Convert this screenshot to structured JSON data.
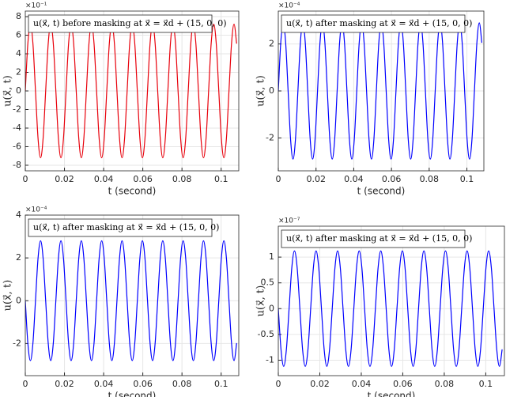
{
  "chart_data": [
    {
      "type": "line",
      "title": "u(x⃗, t) before masking at x⃗ = x⃗d + (15, 0, 0)",
      "xlabel": "t (second)",
      "ylabel": "u(x⃗, t)",
      "exponent": "×10⁻¹",
      "color": "#e8000b",
      "grid": true,
      "xlim": [
        0,
        0.109
      ],
      "xticks": [
        0,
        0.02,
        0.04,
        0.06,
        0.08,
        0.1
      ],
      "ylim": [
        -8.6,
        8.6
      ],
      "yticks": [
        -8,
        -6,
        -4,
        -2,
        0,
        2,
        4,
        6,
        8
      ],
      "x": [
        0,
        0.0013,
        0.0026,
        0.0039,
        0.0052,
        0.0065,
        0.0078,
        0.0091,
        0.0104,
        0.0117,
        0.013,
        0.0143,
        0.0156,
        0.0169,
        0.0182,
        0.0195,
        0.0208,
        0.0221,
        0.0234,
        0.0247,
        0.026,
        0.0273,
        0.0286,
        0.0299,
        0.0312,
        0.0325,
        0.0338,
        0.0351,
        0.0364,
        0.0377,
        0.039,
        0.0403,
        0.0416,
        0.0429,
        0.0442,
        0.0455,
        0.0468,
        0.0481,
        0.0494,
        0.0507,
        0.052,
        0.0533,
        0.0546,
        0.0559,
        0.0572,
        0.0585,
        0.0598,
        0.0611,
        0.0624,
        0.0637,
        0.065,
        0.0663,
        0.0676,
        0.0689,
        0.0702,
        0.0715,
        0.0728,
        0.0741,
        0.0754,
        0.0767,
        0.078,
        0.0793,
        0.0806,
        0.0819,
        0.0832,
        0.0845,
        0.0858,
        0.0871,
        0.0884,
        0.0897,
        0.091,
        0.0923,
        0.0936,
        0.0949,
        0.0962,
        0.0975,
        0.0988,
        0.1001,
        0.1014,
        0.1027,
        0.104,
        0.1053,
        0.1066,
        0.1079
      ],
      "values": [
        0,
        5.09,
        7.2,
        5.09,
        0,
        -5.09,
        -7.2,
        -5.09,
        0,
        5.09,
        7.2,
        5.09,
        0,
        -5.09,
        -7.2,
        -5.09,
        0,
        5.09,
        7.2,
        5.09,
        0,
        -5.09,
        -7.2,
        -5.09,
        0,
        5.09,
        7.2,
        5.09,
        0,
        -5.09,
        -7.2,
        -5.09,
        0,
        5.09,
        7.2,
        5.09,
        0,
        -5.09,
        -7.2,
        -5.09,
        0,
        5.09,
        7.2,
        5.09,
        0,
        -5.09,
        -7.2,
        -5.09,
        0,
        5.09,
        7.2,
        5.09,
        0,
        -5.09,
        -7.2,
        -5.09,
        0,
        5.09,
        7.2,
        5.09,
        0,
        -5.09,
        -7.2,
        -5.09,
        0,
        5.09,
        7.2,
        5.09,
        0,
        -5.09,
        -7.2,
        -5.09,
        0,
        5.09,
        7.2,
        5.09,
        0,
        -5.09,
        -7.2,
        -5.09,
        0,
        5.09,
        7.2,
        5.09
      ]
    },
    {
      "type": "line",
      "title": "u(x⃗, t) after masking at x⃗ = x⃗d + (15, 0, 0)",
      "xlabel": "t (second)",
      "ylabel": "u(x⃗, t)",
      "exponent": "×10⁻⁴",
      "color": "#0000ff",
      "grid": true,
      "xlim": [
        0,
        0.109
      ],
      "xticks": [
        0,
        0.02,
        0.04,
        0.06,
        0.08,
        0.1
      ],
      "ylim": [
        -3.4,
        3.4
      ],
      "yticks": [
        -2,
        0,
        2
      ],
      "x": [
        0,
        0.0013,
        0.0026,
        0.0039,
        0.0052,
        0.0065,
        0.0078,
        0.0091,
        0.0104,
        0.0117,
        0.013,
        0.0143,
        0.0156,
        0.0169,
        0.0182,
        0.0195,
        0.0208,
        0.0221,
        0.0234,
        0.0247,
        0.026,
        0.0273,
        0.0286,
        0.0299,
        0.0312,
        0.0325,
        0.0338,
        0.0351,
        0.0364,
        0.0377,
        0.039,
        0.0403,
        0.0416,
        0.0429,
        0.0442,
        0.0455,
        0.0468,
        0.0481,
        0.0494,
        0.0507,
        0.052,
        0.0533,
        0.0546,
        0.0559,
        0.0572,
        0.0585,
        0.0598,
        0.0611,
        0.0624,
        0.0637,
        0.065,
        0.0663,
        0.0676,
        0.0689,
        0.0702,
        0.0715,
        0.0728,
        0.0741,
        0.0754,
        0.0767,
        0.078,
        0.0793,
        0.0806,
        0.0819,
        0.0832,
        0.0845,
        0.0858,
        0.0871,
        0.0884,
        0.0897,
        0.091,
        0.0923,
        0.0936,
        0.0949,
        0.0962,
        0.0975,
        0.0988,
        0.1001,
        0.1014,
        0.1027,
        0.104,
        0.1053,
        0.1066,
        0.1079
      ],
      "values": [
        0,
        2.05,
        2.9,
        2.05,
        0,
        -2.05,
        -2.9,
        -2.05,
        0,
        2.05,
        2.9,
        2.05,
        0,
        -2.05,
        -2.9,
        -2.05,
        0,
        2.05,
        2.9,
        2.05,
        0,
        -2.05,
        -2.9,
        -2.05,
        0,
        2.05,
        2.9,
        2.05,
        0,
        -2.05,
        -2.9,
        -2.05,
        0,
        2.05,
        2.9,
        2.05,
        0,
        -2.05,
        -2.9,
        -2.05,
        0,
        2.05,
        2.9,
        2.05,
        0,
        -2.05,
        -2.9,
        -2.05,
        0,
        2.05,
        2.9,
        2.05,
        0,
        -2.05,
        -2.9,
        -2.05,
        0,
        2.05,
        2.9,
        2.05,
        0,
        -2.05,
        -2.9,
        -2.05,
        0,
        2.05,
        2.9,
        2.05,
        0,
        -2.05,
        -2.9,
        -2.05,
        0,
        2.05,
        2.9,
        2.05,
        0,
        -2.05,
        -2.9,
        -2.05,
        0,
        2.05,
        2.9,
        2.05
      ]
    },
    {
      "type": "line",
      "title": "u(x⃗, t) after masking at x⃗ = x⃗d + (15, 0, 0)",
      "xlabel": "t (second)",
      "ylabel": "u(x⃗, t)",
      "exponent": "×10⁻⁴",
      "color": "#0000ff",
      "grid": true,
      "xlim": [
        0,
        0.109
      ],
      "xticks": [
        0,
        0.02,
        0.04,
        0.06,
        0.08,
        0.1
      ],
      "ylim": [
        -3.5,
        4
      ],
      "yticks": [
        -2,
        0,
        2,
        4
      ],
      "x": [
        0,
        0.0013,
        0.0026,
        0.0039,
        0.0052,
        0.0065,
        0.0078,
        0.0091,
        0.0104,
        0.0117,
        0.013,
        0.0143,
        0.0156,
        0.0169,
        0.0182,
        0.0195,
        0.0208,
        0.0221,
        0.0234,
        0.0247,
        0.026,
        0.0273,
        0.0286,
        0.0299,
        0.0312,
        0.0325,
        0.0338,
        0.0351,
        0.0364,
        0.0377,
        0.039,
        0.0403,
        0.0416,
        0.0429,
        0.0442,
        0.0455,
        0.0468,
        0.0481,
        0.0494,
        0.0507,
        0.052,
        0.0533,
        0.0546,
        0.0559,
        0.0572,
        0.0585,
        0.0598,
        0.0611,
        0.0624,
        0.0637,
        0.065,
        0.0663,
        0.0676,
        0.0689,
        0.0702,
        0.0715,
        0.0728,
        0.0741,
        0.0754,
        0.0767,
        0.078,
        0.0793,
        0.0806,
        0.0819,
        0.0832,
        0.0845,
        0.0858,
        0.0871,
        0.0884,
        0.0897,
        0.091,
        0.0923,
        0.0936,
        0.0949,
        0.0962,
        0.0975,
        0.0988,
        0.1001,
        0.1014,
        0.1027,
        0.104,
        0.1053,
        0.1066,
        0.1079
      ],
      "values": [
        0,
        -1.98,
        -2.8,
        -1.98,
        0,
        1.98,
        2.8,
        1.98,
        0,
        -1.98,
        -2.8,
        -1.98,
        0,
        1.98,
        2.8,
        1.98,
        0,
        -1.98,
        -2.8,
        -1.98,
        0,
        1.98,
        2.8,
        1.98,
        0,
        -1.98,
        -2.8,
        -1.98,
        0,
        1.98,
        2.8,
        1.98,
        0,
        -1.98,
        -2.8,
        -1.98,
        0,
        1.98,
        2.8,
        1.98,
        0,
        -1.98,
        -2.8,
        -1.98,
        0,
        1.98,
        2.8,
        1.98,
        0,
        -1.98,
        -2.8,
        -1.98,
        0,
        1.98,
        2.8,
        1.98,
        0,
        -1.98,
        -2.8,
        -1.98,
        0,
        1.98,
        2.8,
        1.98,
        0,
        -1.98,
        -2.8,
        -1.98,
        0,
        1.98,
        2.8,
        1.98,
        0,
        -1.98,
        -2.8,
        -1.98,
        0,
        1.98,
        2.8,
        1.98,
        0,
        -1.98,
        -2.8,
        -1.98
      ]
    },
    {
      "type": "line",
      "title": "u(x⃗, t) after masking at x⃗ = x⃗d + (15, 0, 0)",
      "xlabel": "t (second)",
      "ylabel": "u(x⃗, t)",
      "exponent": "×10⁻⁷",
      "color": "#0000ff",
      "grid": true,
      "xlim": [
        0,
        0.109
      ],
      "xticks": [
        0,
        0.02,
        0.04,
        0.06,
        0.08,
        0.1
      ],
      "ylim": [
        -1.3,
        1.6
      ],
      "yticks": [
        -1,
        -0.5,
        0,
        0.5,
        1
      ],
      "x": [
        0,
        0.0013,
        0.0026,
        0.0039,
        0.0052,
        0.0065,
        0.0078,
        0.0091,
        0.0104,
        0.0117,
        0.013,
        0.0143,
        0.0156,
        0.0169,
        0.0182,
        0.0195,
        0.0208,
        0.0221,
        0.0234,
        0.0247,
        0.026,
        0.0273,
        0.0286,
        0.0299,
        0.0312,
        0.0325,
        0.0338,
        0.0351,
        0.0364,
        0.0377,
        0.039,
        0.0403,
        0.0416,
        0.0429,
        0.0442,
        0.0455,
        0.0468,
        0.0481,
        0.0494,
        0.0507,
        0.052,
        0.0533,
        0.0546,
        0.0559,
        0.0572,
        0.0585,
        0.0598,
        0.0611,
        0.0624,
        0.0637,
        0.065,
        0.0663,
        0.0676,
        0.0689,
        0.0702,
        0.0715,
        0.0728,
        0.0741,
        0.0754,
        0.0767,
        0.078,
        0.0793,
        0.0806,
        0.0819,
        0.0832,
        0.0845,
        0.0858,
        0.0871,
        0.0884,
        0.0897,
        0.091,
        0.0923,
        0.0936,
        0.0949,
        0.0962,
        0.0975,
        0.0988,
        0.1001,
        0.1014,
        0.1027,
        0.104,
        0.1053,
        0.1066,
        0.1079
      ],
      "values": [
        0,
        -0.79,
        -1.12,
        -0.79,
        0,
        0.79,
        1.12,
        0.79,
        0,
        -0.79,
        -1.12,
        -0.79,
        0,
        0.79,
        1.12,
        0.79,
        0,
        -0.79,
        -1.12,
        -0.79,
        0,
        0.79,
        1.12,
        0.79,
        0,
        -0.79,
        -1.12,
        -0.79,
        0,
        0.79,
        1.12,
        0.79,
        0,
        -0.79,
        -1.12,
        -0.79,
        0,
        0.79,
        1.12,
        0.79,
        0,
        -0.79,
        -1.12,
        -0.79,
        0,
        0.79,
        1.12,
        0.79,
        0,
        -0.79,
        -1.12,
        -0.79,
        0,
        0.79,
        1.12,
        0.79,
        0,
        -0.79,
        -1.12,
        -0.79,
        0,
        0.79,
        1.12,
        0.79,
        0,
        -0.79,
        -1.12,
        -0.79,
        0,
        0.79,
        1.12,
        0.79,
        0,
        -0.79,
        -1.12,
        -0.79,
        0,
        0.79,
        1.12,
        0.79,
        0,
        -0.79,
        -1.12,
        -0.79
      ]
    }
  ]
}
